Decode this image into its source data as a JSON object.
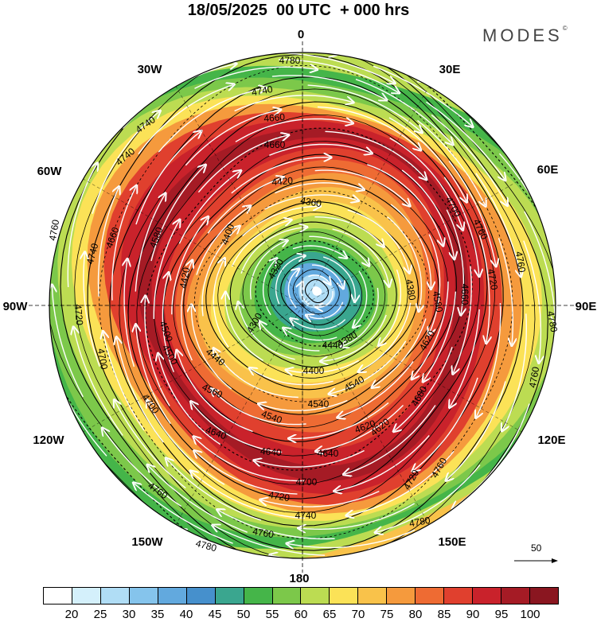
{
  "title": "18/05/2025  00 UTC  + 000 hrs",
  "brand": "MODES",
  "brand_mark": "©",
  "longitude_labels": [
    "0",
    "30E",
    "60E",
    "90E",
    "120E",
    "150E",
    "180",
    "150W",
    "120W",
    "90W",
    "60W",
    "30W"
  ],
  "contour_labels": [
    "4780",
    "4740",
    "4700",
    "4660",
    "4620",
    "4580",
    "4540",
    "4500",
    "4460",
    "4420",
    "4400",
    "4380",
    "4360",
    "4320",
    "4300",
    "4440",
    "4560",
    "4640",
    "4680",
    "4720",
    "4760"
  ],
  "wind_reference": {
    "label": "50"
  },
  "colorbar": {
    "tick_labels": [
      "20",
      "25",
      "30",
      "35",
      "40",
      "45",
      "50",
      "55",
      "60",
      "65",
      "70",
      "75",
      "80",
      "85",
      "90",
      "95",
      "100"
    ],
    "colors": [
      "#ffffff",
      "#d4f0fb",
      "#b0ddf5",
      "#85c4ec",
      "#62a9de",
      "#4690cc",
      "#3aa68f",
      "#45b549",
      "#7cc84a",
      "#bcdc52",
      "#fbe257",
      "#f9c24a",
      "#f59a3d",
      "#ee6b33",
      "#e0402e",
      "#c9222b",
      "#a51b25",
      "#8a1620"
    ]
  },
  "map": {
    "center_color": "#ffffff",
    "ring_colors": [
      "#ffffff",
      "#b0ddf5",
      "#62a9de",
      "#3aa68f",
      "#45b549",
      "#7cc84a",
      "#bcdc52",
      "#fbe257",
      "#f9c24a",
      "#f59a3d",
      "#ee6b33",
      "#e0402e",
      "#c9222b",
      "#a51b25",
      "#c9222b",
      "#e0402e",
      "#f59a3d",
      "#fbe257",
      "#bcdc52",
      "#7cc84a",
      "#45b549",
      "#bcdc52",
      "#f9c24a"
    ]
  }
}
